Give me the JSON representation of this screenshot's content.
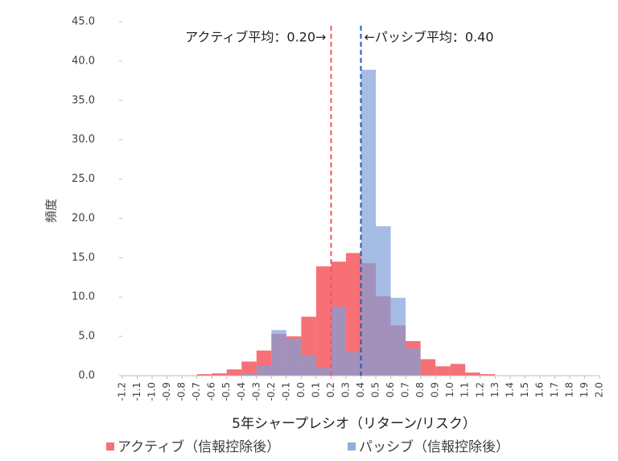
{
  "chart_data": {
    "type": "histogram",
    "x_label": "5年シャープレシオ（リターン/リスク）",
    "y_label": "頻度",
    "bins": [
      -1.2,
      -1.1,
      -1.0,
      -0.9,
      -0.8,
      -0.7,
      -0.6,
      -0.5,
      -0.4,
      -0.3,
      -0.2,
      -0.1,
      0.0,
      0.1,
      0.2,
      0.3,
      0.4,
      0.5,
      0.6,
      0.7,
      0.8,
      0.9,
      1.0,
      1.1,
      1.2,
      1.3,
      1.4,
      1.5,
      1.6,
      1.7,
      1.8,
      1.9,
      2.0
    ],
    "series": [
      {
        "name": "アクティブ（信報控除後）",
        "color": "#f4575e",
        "values": [
          0,
          0,
          0,
          0,
          0,
          0.2,
          0.3,
          0.8,
          1.8,
          3.2,
          5.3,
          5.0,
          7.5,
          13.9,
          14.5,
          15.6,
          14.3,
          10.1,
          6.4,
          4.4,
          2.1,
          1.2,
          1.5,
          0.4,
          0.2,
          0,
          0,
          0,
          0,
          0,
          0,
          0
        ]
      },
      {
        "name": "パッシブ（信報控除後）",
        "color": "#7f9fd8",
        "values": [
          0,
          0,
          0,
          0,
          0,
          0,
          0,
          0,
          0.3,
          1.3,
          5.8,
          4.7,
          2.6,
          1.0,
          8.8,
          3.0,
          38.9,
          19.0,
          9.9,
          3.5,
          0,
          0,
          0,
          0,
          0,
          0,
          0,
          0,
          0,
          0,
          0,
          0
        ]
      }
    ],
    "mean_lines": [
      {
        "value": 0.2,
        "color": "#f4575e",
        "label": "アクティブ平均：0.20→"
      },
      {
        "value": 0.4,
        "color": "#1f5fb0",
        "label": "←パッシブ平均：0.40"
      }
    ],
    "xlim": [
      -1.2,
      2.0
    ],
    "xticks": [
      -1.2,
      -1.1,
      {
        "value": -1.0,
        "label": "-1.0"
      },
      -0.9,
      -0.8,
      -0.7,
      -0.6,
      -0.5,
      -0.4,
      -0.3,
      -0.2,
      -0.1,
      {
        "value": 0,
        "label": "0.0"
      },
      0.1,
      0.2,
      0.3,
      0.4,
      0.5,
      0.6,
      0.7,
      0.8,
      0.9,
      {
        "value": 1,
        "label": "1.0"
      },
      1.1,
      1.2,
      1.3,
      1.4,
      1.5,
      1.6,
      1.7,
      1.8,
      1.9,
      {
        "value": 2,
        "label": "2.0"
      }
    ],
    "ylim": [
      0,
      45
    ],
    "yticks": [
      {
        "value": 0,
        "label": "0.0"
      },
      {
        "value": 5,
        "label": "5.0"
      },
      {
        "value": 10,
        "label": "10.0"
      },
      {
        "value": 15,
        "label": "15.0"
      },
      {
        "value": 20,
        "label": "20.0"
      },
      {
        "value": 25,
        "label": "25.0"
      },
      {
        "value": 30,
        "label": "30.0"
      },
      {
        "value": 35,
        "label": "35.0"
      },
      {
        "value": 40,
        "label": "40.0"
      },
      {
        "value": 45,
        "label": "45.0"
      }
    ]
  }
}
